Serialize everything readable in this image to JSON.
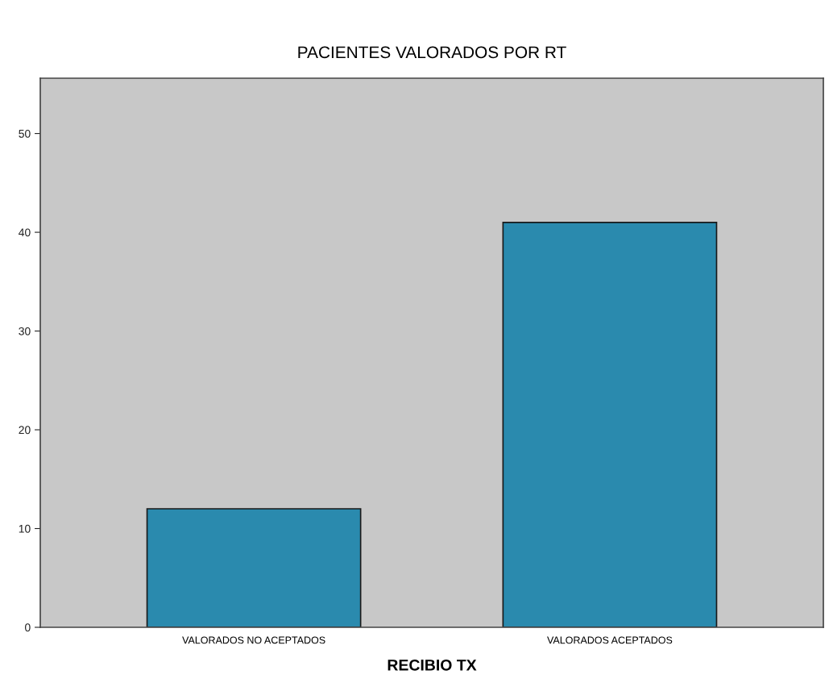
{
  "chart_data": {
    "type": "bar",
    "title": "PACIENTES VALORADOS POR RT",
    "xlabel": "RECIBIO TX",
    "categories": [
      "VALORADOS NO ACEPTADOS",
      "VALORADOS ACEPTADOS"
    ],
    "values": [
      12,
      41
    ],
    "color": "#2a8aae",
    "ylim": [
      0,
      55.6
    ],
    "yticks": [
      0,
      10,
      20,
      30,
      40,
      50
    ],
    "grid": false
  }
}
